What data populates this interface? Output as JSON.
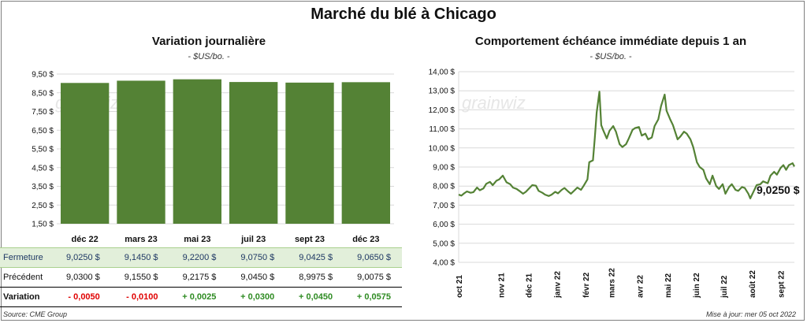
{
  "title": "Marché du blé à Chicago",
  "left": {
    "title": "Variation journalière",
    "subtitle": "- $US/bo. -",
    "watermark": "grainwiz"
  },
  "right": {
    "title": "Comportement échéance immédiate depuis 1 an",
    "subtitle": "- $US/bo. -",
    "watermark": "grainwiz",
    "last_label": "9,0250 $"
  },
  "table": {
    "rows": [
      {
        "label": "Fermeture",
        "values": [
          "9,0250 $",
          "9,1450 $",
          "9,2200 $",
          "9,0750 $",
          "9,0425 $",
          "9,0650 $"
        ]
      },
      {
        "label": "Précédent",
        "values": [
          "9,0300 $",
          "9,1550 $",
          "9,2175 $",
          "9,0450 $",
          "8,9975 $",
          "9,0075 $"
        ]
      },
      {
        "label": "Variation",
        "values": [
          "- 0,0050",
          "- 0,0100",
          "+ 0,0025",
          "+ 0,0300",
          "+ 0,0450",
          "+ 0,0575"
        ]
      }
    ]
  },
  "footer": {
    "source": "Source: CME Group",
    "updated": "Mise à jour: mer 05 oct 2022"
  },
  "colors": {
    "bar": "#548235",
    "line": "#548235",
    "negative": "#e00000",
    "positive": "#2e8b22",
    "highlight_row": "#e2efda"
  },
  "chart_data": [
    {
      "type": "bar",
      "categories": [
        "déc 22",
        "mars 23",
        "mai 23",
        "juil 23",
        "sept 23",
        "déc 23"
      ],
      "series": [
        {
          "values": [
            9.025,
            9.145,
            9.22,
            9.075,
            9.0425,
            9.065
          ]
        }
      ],
      "ylim": [
        1.5,
        9.5
      ],
      "yticks": [
        "1,50 $",
        "2,50 $",
        "3,50 $",
        "4,50 $",
        "5,50 $",
        "6,50 $",
        "7,50 $",
        "8,50 $",
        "9,50 $"
      ],
      "grid": true,
      "legend": "none"
    },
    {
      "type": "line",
      "x_start": "2021-10-05",
      "x_end": "2022-10-05",
      "xticks": [
        "oct 21",
        "nov 21",
        "déc 21",
        "janv 22",
        "févr 22",
        "mars 22",
        "avr 22",
        "mai 22",
        "juin 22",
        "juil 22",
        "août 22",
        "sept 22"
      ],
      "ylim": [
        4.0,
        14.0
      ],
      "yticks": [
        "4,00 $",
        "5,00 $",
        "6,00 $",
        "7,00 $",
        "8,00 $",
        "9,00 $",
        "10,00 $",
        "11,00 $",
        "12,00 $",
        "13,00 $",
        "14,00 $"
      ],
      "series": [
        {
          "points": [
            [
              "2021-10-05",
              7.55
            ],
            [
              "2021-10-08",
              7.5
            ],
            [
              "2021-10-11",
              7.62
            ],
            [
              "2021-10-14",
              7.72
            ],
            [
              "2021-10-18",
              7.65
            ],
            [
              "2021-10-21",
              7.68
            ],
            [
              "2021-10-25",
              7.92
            ],
            [
              "2021-10-28",
              7.78
            ],
            [
              "2021-11-01",
              7.88
            ],
            [
              "2021-11-04",
              8.12
            ],
            [
              "2021-11-08",
              8.22
            ],
            [
              "2021-11-11",
              8.05
            ],
            [
              "2021-11-15",
              8.28
            ],
            [
              "2021-11-18",
              8.35
            ],
            [
              "2021-11-22",
              8.55
            ],
            [
              "2021-11-26",
              8.2
            ],
            [
              "2021-11-30",
              8.1
            ],
            [
              "2021-12-03",
              7.92
            ],
            [
              "2021-12-07",
              7.85
            ],
            [
              "2021-12-10",
              7.75
            ],
            [
              "2021-12-14",
              7.6
            ],
            [
              "2021-12-17",
              7.7
            ],
            [
              "2021-12-21",
              7.9
            ],
            [
              "2021-12-24",
              8.05
            ],
            [
              "2021-12-28",
              8.02
            ],
            [
              "2021-12-31",
              7.75
            ],
            [
              "2022-01-04",
              7.65
            ],
            [
              "2022-01-07",
              7.55
            ],
            [
              "2022-01-11",
              7.48
            ],
            [
              "2022-01-14",
              7.55
            ],
            [
              "2022-01-18",
              7.7
            ],
            [
              "2022-01-21",
              7.62
            ],
            [
              "2022-01-25",
              7.8
            ],
            [
              "2022-01-28",
              7.9
            ],
            [
              "2022-02-01",
              7.72
            ],
            [
              "2022-02-04",
              7.6
            ],
            [
              "2022-02-08",
              7.78
            ],
            [
              "2022-02-11",
              7.92
            ],
            [
              "2022-02-15",
              7.8
            ],
            [
              "2022-02-18",
              8.02
            ],
            [
              "2022-02-22",
              8.35
            ],
            [
              "2022-02-24",
              9.25
            ],
            [
              "2022-02-28",
              9.35
            ],
            [
              "2022-03-02",
              10.5
            ],
            [
              "2022-03-04",
              11.85
            ],
            [
              "2022-03-07",
              12.95
            ],
            [
              "2022-03-09",
              11.2
            ],
            [
              "2022-03-11",
              10.95
            ],
            [
              "2022-03-15",
              10.5
            ],
            [
              "2022-03-18",
              10.9
            ],
            [
              "2022-03-22",
              11.15
            ],
            [
              "2022-03-25",
              10.85
            ],
            [
              "2022-03-29",
              10.2
            ],
            [
              "2022-04-01",
              10.05
            ],
            [
              "2022-04-05",
              10.2
            ],
            [
              "2022-04-08",
              10.5
            ],
            [
              "2022-04-12",
              10.95
            ],
            [
              "2022-04-15",
              11.05
            ],
            [
              "2022-04-19",
              11.1
            ],
            [
              "2022-04-22",
              10.65
            ],
            [
              "2022-04-26",
              10.75
            ],
            [
              "2022-04-29",
              10.45
            ],
            [
              "2022-05-03",
              10.55
            ],
            [
              "2022-05-06",
              11.15
            ],
            [
              "2022-05-10",
              11.5
            ],
            [
              "2022-05-13",
              12.2
            ],
            [
              "2022-05-17",
              12.8
            ],
            [
              "2022-05-19",
              11.95
            ],
            [
              "2022-05-23",
              11.5
            ],
            [
              "2022-05-26",
              11.2
            ],
            [
              "2022-05-31",
              10.45
            ],
            [
              "2022-06-03",
              10.6
            ],
            [
              "2022-06-07",
              10.85
            ],
            [
              "2022-06-10",
              10.75
            ],
            [
              "2022-06-14",
              10.45
            ],
            [
              "2022-06-17",
              10.05
            ],
            [
              "2022-06-21",
              9.25
            ],
            [
              "2022-06-24",
              9.0
            ],
            [
              "2022-06-28",
              8.85
            ],
            [
              "2022-07-01",
              8.4
            ],
            [
              "2022-07-05",
              8.1
            ],
            [
              "2022-07-08",
              8.55
            ],
            [
              "2022-07-12",
              8.0
            ],
            [
              "2022-07-15",
              7.85
            ],
            [
              "2022-07-19",
              8.1
            ],
            [
              "2022-07-22",
              7.6
            ],
            [
              "2022-07-26",
              7.95
            ],
            [
              "2022-07-29",
              8.1
            ],
            [
              "2022-08-02",
              7.8
            ],
            [
              "2022-08-05",
              7.75
            ],
            [
              "2022-08-09",
              7.95
            ],
            [
              "2022-08-12",
              7.9
            ],
            [
              "2022-08-16",
              7.6
            ],
            [
              "2022-08-18",
              7.35
            ],
            [
              "2022-08-22",
              7.75
            ],
            [
              "2022-08-25",
              8.05
            ],
            [
              "2022-08-29",
              8.1
            ],
            [
              "2022-09-01",
              8.25
            ],
            [
              "2022-09-06",
              8.15
            ],
            [
              "2022-09-09",
              8.55
            ],
            [
              "2022-09-13",
              8.75
            ],
            [
              "2022-09-16",
              8.6
            ],
            [
              "2022-09-20",
              8.95
            ],
            [
              "2022-09-23",
              9.1
            ],
            [
              "2022-09-26",
              8.85
            ],
            [
              "2022-09-29",
              9.1
            ],
            [
              "2022-10-03",
              9.2
            ],
            [
              "2022-10-05",
              9.025
            ]
          ]
        }
      ],
      "grid": true,
      "legend": "none"
    }
  ]
}
